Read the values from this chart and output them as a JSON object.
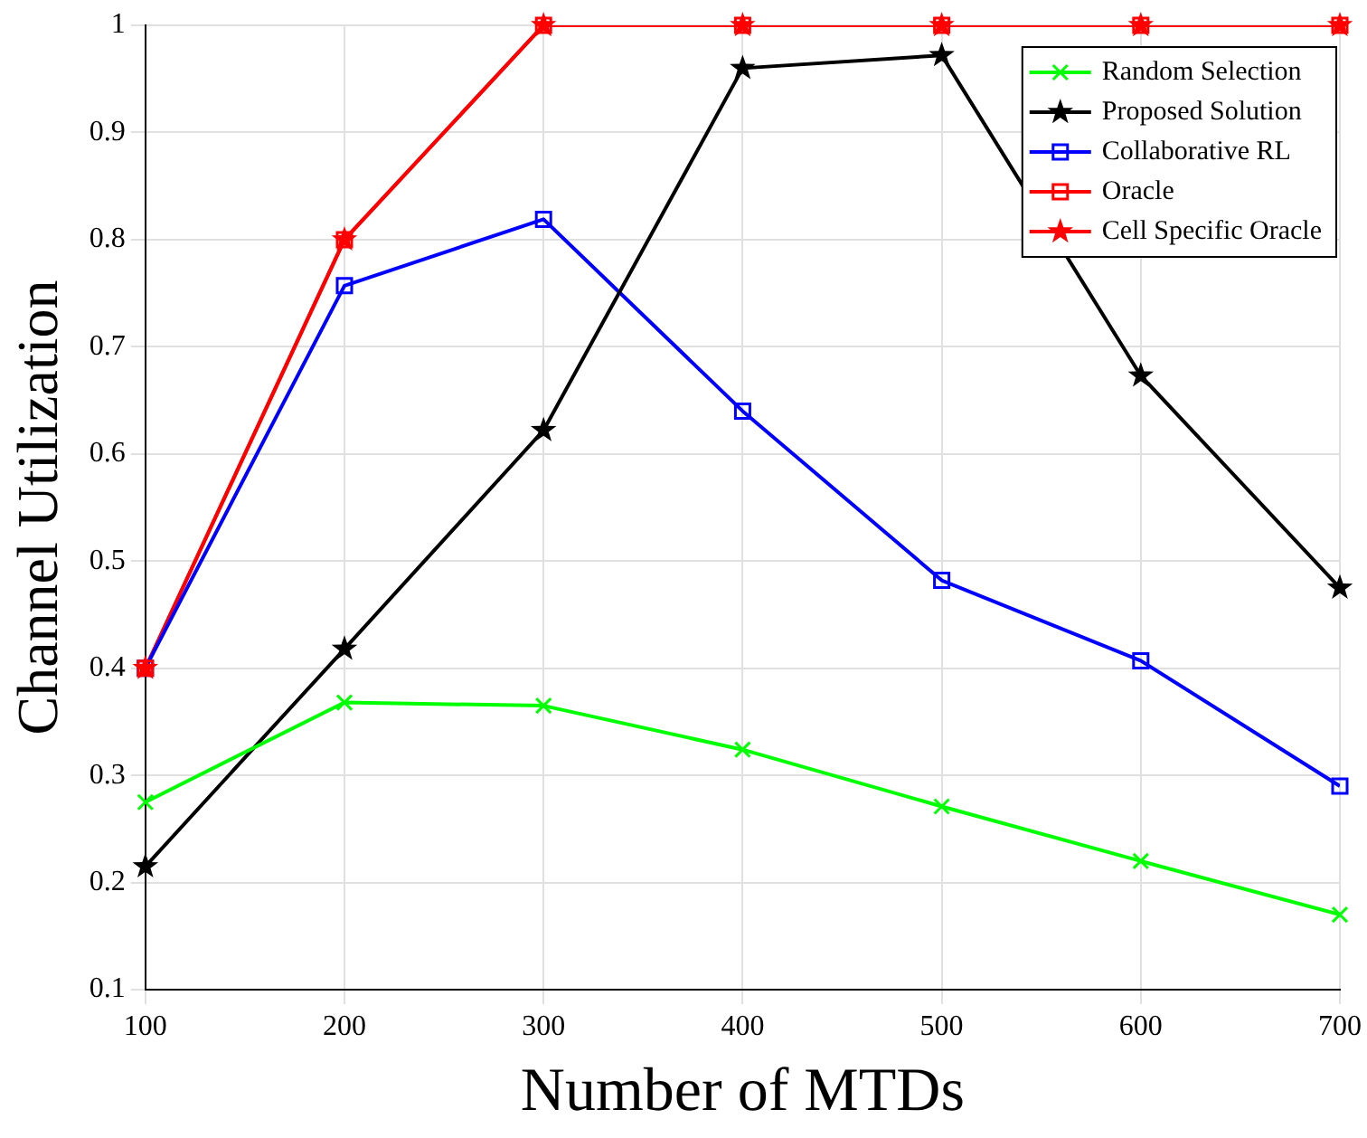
{
  "chart_data": {
    "type": "line",
    "xlabel": "Number of MTDs",
    "ylabel": "Channel Utilization",
    "x": [
      100,
      200,
      300,
      400,
      500,
      600,
      700
    ],
    "xlim": [
      100,
      700
    ],
    "xticks": [
      100,
      200,
      300,
      400,
      500,
      600,
      700
    ],
    "ylim": [
      0.1,
      1
    ],
    "yticks": [
      0.1,
      0.2,
      0.3,
      0.4,
      0.5,
      0.6,
      0.7,
      0.8,
      0.9,
      1
    ],
    "grid": true,
    "legend": "top right",
    "line_style": "solid",
    "series": [
      {
        "name": "Random Selection",
        "color": "#00ff00",
        "marker": "cross",
        "values": [
          0.275,
          0.368,
          0.365,
          0.324,
          0.271,
          0.22,
          0.17
        ]
      },
      {
        "name": "Proposed Solution",
        "color": "#000000",
        "marker": "star",
        "values": [
          0.215,
          0.418,
          0.622,
          0.96,
          0.972,
          0.673,
          0.475
        ]
      },
      {
        "name": "Collaborative RL",
        "color": "#0000ff",
        "marker": "square",
        "values": [
          0.4,
          0.757,
          0.819,
          0.64,
          0.482,
          0.407,
          0.29
        ]
      },
      {
        "name": "Oracle",
        "color": "#ff0000",
        "marker": "square",
        "values": [
          0.4,
          0.8,
          1,
          1,
          1,
          1,
          1
        ]
      },
      {
        "name": "Cell Specific Oracle",
        "color": "#ff0000",
        "marker": "star",
        "values": [
          0.4,
          0.8,
          1,
          1,
          1,
          1,
          1
        ]
      }
    ]
  }
}
